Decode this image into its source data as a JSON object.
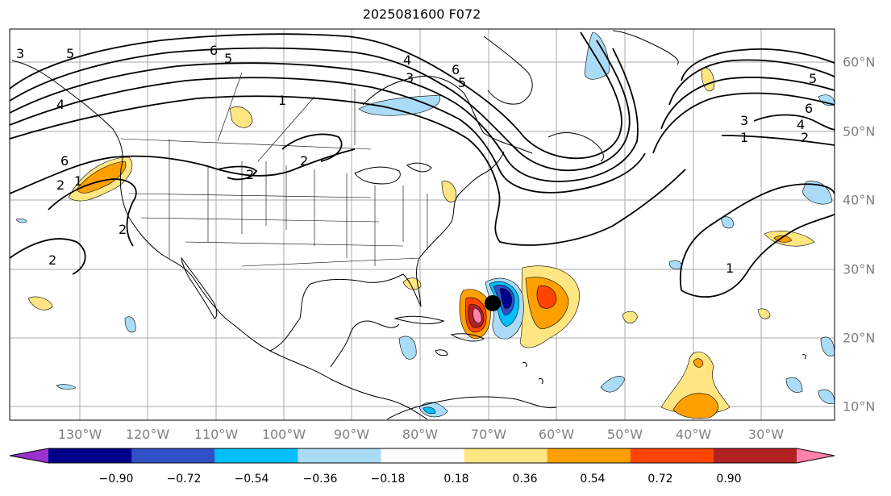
{
  "title": "2025081600 F072",
  "longitude_labels": [
    "130°W",
    "120°W",
    "110°W",
    "100°W",
    "90°W",
    "80°W",
    "70°W",
    "60°W",
    "50°W",
    "40°W",
    "30°W"
  ],
  "latitude_labels": [
    "60°N",
    "50°N",
    "40°N",
    "30°N",
    "20°N",
    "10°N"
  ],
  "contour_labels": [
    "6",
    "5",
    "4",
    "3",
    "2",
    "1"
  ],
  "colorbar": {
    "ticks": [
      "−0.90",
      "−0.72",
      "−0.54",
      "−0.36",
      "−0.18",
      "0.18",
      "0.36",
      "0.54",
      "0.72",
      "0.90"
    ],
    "colors": [
      "#9932cc",
      "#00008b",
      "#3050c8",
      "#00bfff",
      "#aadcf8",
      "#ffffff",
      "#ffe682",
      "#ffa000",
      "#ff4500",
      "#b22222",
      "#ff82ab"
    ],
    "extend": "both"
  },
  "storm_marker": {
    "color": "#000000"
  }
}
